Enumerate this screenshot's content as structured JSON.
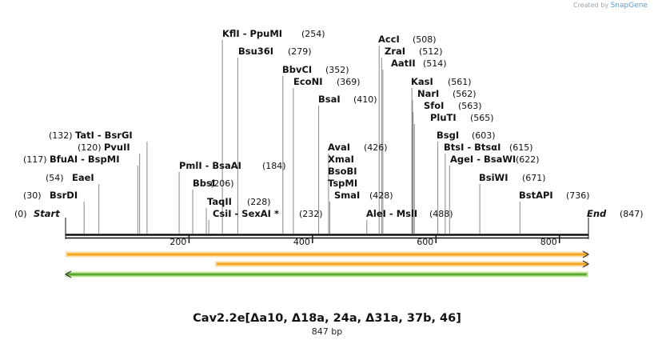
{
  "credit": {
    "prefix": "Created by",
    "brand": "SnapGene"
  },
  "title": "Cav2.2e[Δa10, Δ18a, 24a, Δ31a, 37b, 46]",
  "length_label": "847 bp",
  "sequence_length": 847,
  "ends": {
    "start_label": "Start",
    "start_pos": "(0)",
    "end_label": "End",
    "end_pos": "(847)"
  },
  "ticks": [
    200,
    400,
    600,
    800
  ],
  "sites": [
    {
      "name": "BsrDI",
      "pos": 30,
      "side": "left"
    },
    {
      "name": "EaeI",
      "pos": 54,
      "side": "left"
    },
    {
      "name": "BfuAI  -  BspMI",
      "pos": 117,
      "side": "left"
    },
    {
      "name": "PvuII",
      "pos": 120,
      "side": "left"
    },
    {
      "name": "TatI  -  BsrGI",
      "pos": 132,
      "side": "left"
    },
    {
      "name": "PmlI  -  BsaAI",
      "pos": 184,
      "side": "right"
    },
    {
      "name": "BbsI",
      "pos": 206,
      "side": "right"
    },
    {
      "name": "TaqII",
      "pos": 228,
      "side": "right"
    },
    {
      "name": "CsiI  -  SexAI *",
      "pos": 232,
      "side": "right"
    },
    {
      "name": "KflI  -  PpuMI",
      "pos": 254,
      "side": "right"
    },
    {
      "name": "Bsu36I",
      "pos": 279,
      "side": "right"
    },
    {
      "name": "BbvCI",
      "pos": 352,
      "side": "right"
    },
    {
      "name": "EcoNI",
      "pos": 369,
      "side": "right"
    },
    {
      "name": "BsaI",
      "pos": 410,
      "side": "right"
    },
    {
      "name": "AvaI",
      "pos": 426,
      "side": "right"
    },
    {
      "name": "XmaI",
      "side": "right",
      "group": true
    },
    {
      "name": "BsoBI",
      "side": "right",
      "group": true
    },
    {
      "name": "TspMI",
      "side": "right",
      "group": true
    },
    {
      "name": "SmaI",
      "pos": 428,
      "side": "right"
    },
    {
      "name": "AleI  -  MslI",
      "pos": 488,
      "side": "right"
    },
    {
      "name": "AccI",
      "pos": 508,
      "side": "right"
    },
    {
      "name": "ZraI",
      "pos": 512,
      "side": "right"
    },
    {
      "name": "AatII",
      "pos": 514,
      "side": "right"
    },
    {
      "name": "KasI",
      "pos": 561,
      "side": "right"
    },
    {
      "name": "NarI",
      "pos": 562,
      "side": "right"
    },
    {
      "name": "SfoI",
      "pos": 563,
      "side": "right"
    },
    {
      "name": "PluTI",
      "pos": 565,
      "side": "right"
    },
    {
      "name": "BsgI",
      "pos": 603,
      "side": "right"
    },
    {
      "name": "BtsI  -  BtsαI",
      "pos": 615,
      "side": "right"
    },
    {
      "name": "AgeI  -  BsaWI",
      "pos": 622,
      "side": "right"
    },
    {
      "name": "BsiWI",
      "pos": 671,
      "side": "right"
    },
    {
      "name": "BstAPI",
      "pos": 736,
      "side": "right"
    }
  ],
  "features": [
    {
      "name": "feature-1",
      "direction": "forward",
      "start": 0,
      "end": 847,
      "fill": "#f4a81d",
      "glow": "#fbdcae"
    },
    {
      "name": "feature-2",
      "direction": "forward",
      "start": 242,
      "end": 847,
      "fill": "#f4a81d",
      "glow": "#fbdcae"
    },
    {
      "name": "feature-3",
      "direction": "reverse",
      "start": 0,
      "end": 847,
      "fill": "#5aa832",
      "glow": "#c6eaa0"
    }
  ]
}
